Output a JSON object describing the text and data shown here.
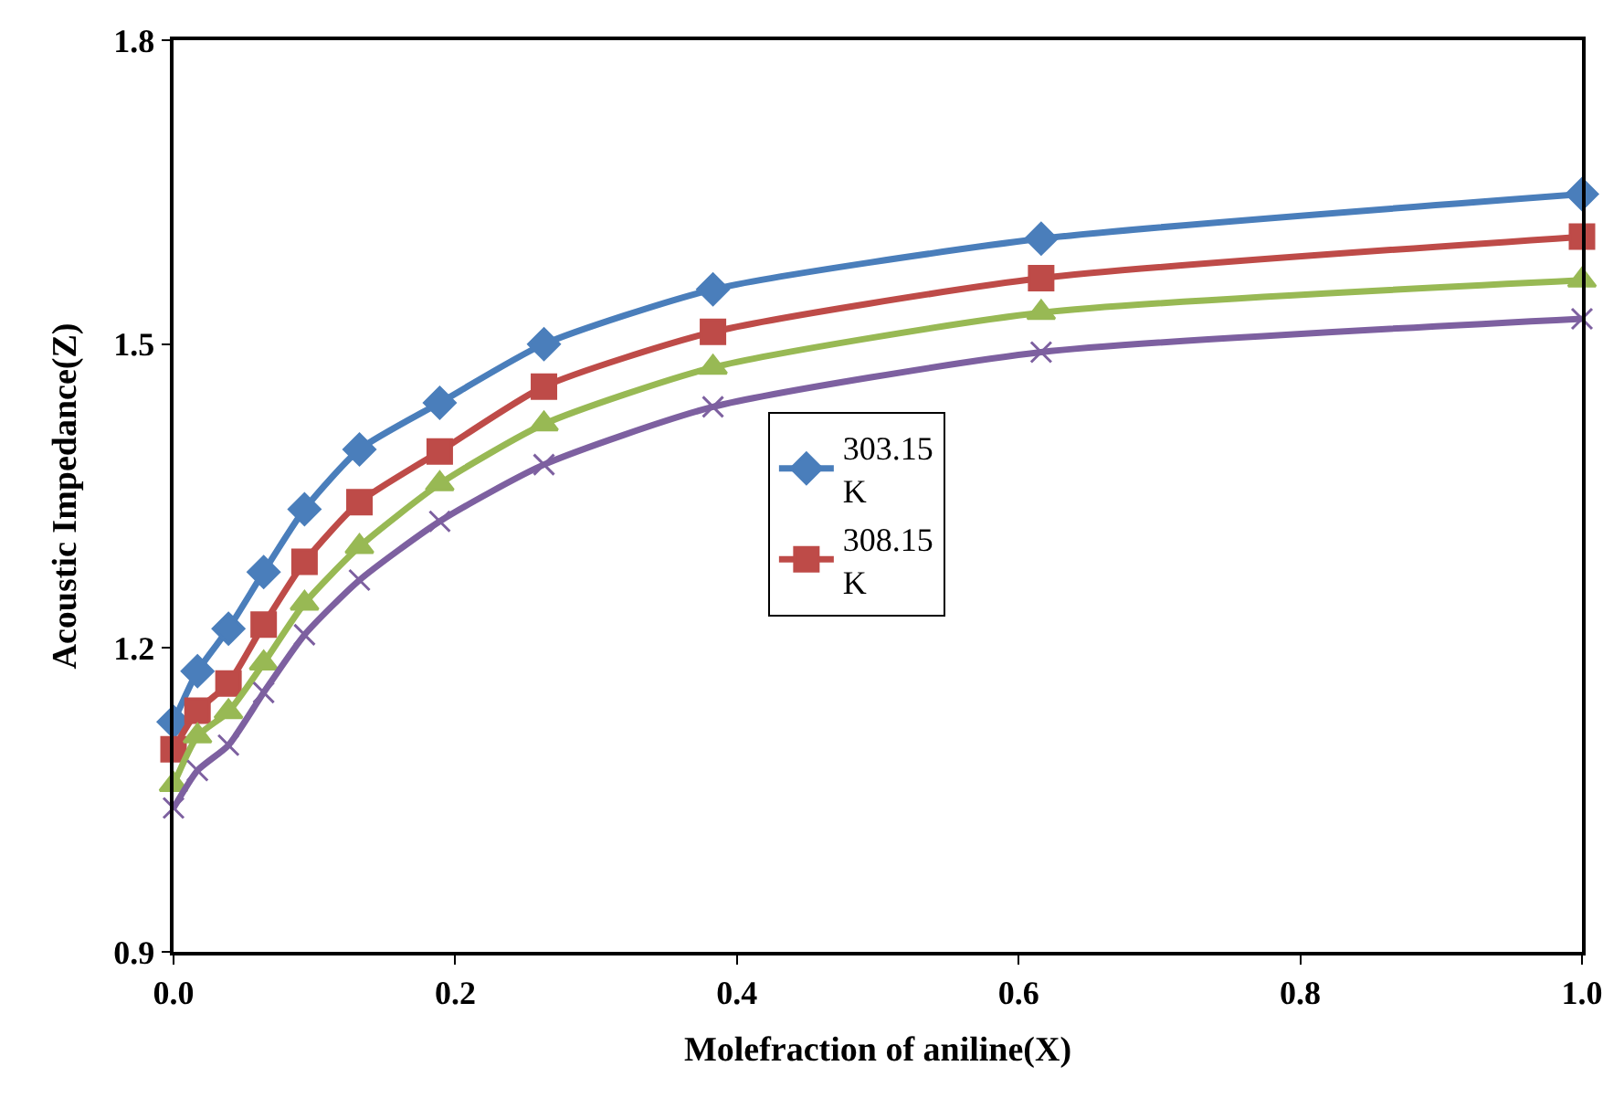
{
  "chart_data": {
    "type": "line",
    "xlabel": "Molefraction of aniline(X)",
    "ylabel": "Acoustic Impedance(Z)",
    "x": [
      0,
      0.017,
      0.039,
      0.064,
      0.093,
      0.132,
      0.189,
      0.263,
      0.383,
      0.616,
      1.0
    ],
    "xlim": [
      0,
      1.0
    ],
    "xticks": [
      {
        "value": 0,
        "label": "0.0"
      },
      0.2,
      0.4,
      0.6,
      0.8,
      {
        "value": 1.0,
        "label": "1.0"
      }
    ],
    "ylim": [
      0.9,
      1.8
    ],
    "yticks": [
      0.9,
      1.2,
      1.5,
      1.8
    ],
    "legend": "center",
    "series": [
      {
        "name": "303.15 K",
        "color": "#4a7ebb",
        "marker": "diamond",
        "values": [
          1.127,
          1.177,
          1.219,
          1.275,
          1.337,
          1.396,
          1.442,
          1.5,
          1.554,
          1.604,
          1.648
        ]
      },
      {
        "name": "308.15 K",
        "color": "#be4b48",
        "marker": "square",
        "values": [
          1.1,
          1.138,
          1.165,
          1.223,
          1.285,
          1.344,
          1.394,
          1.458,
          1.512,
          1.565,
          1.606
        ]
      },
      {
        "color": "#98b954",
        "marker": "triangle",
        "values": [
          1.065,
          1.113,
          1.137,
          1.185,
          1.244,
          1.3,
          1.362,
          1.421,
          1.477,
          1.531,
          1.563
        ]
      },
      {
        "color": "#7d60a0",
        "marker": "cross",
        "values": [
          1.042,
          1.079,
          1.104,
          1.156,
          1.213,
          1.267,
          1.325,
          1.381,
          1.438,
          1.492,
          1.525
        ]
      }
    ]
  }
}
